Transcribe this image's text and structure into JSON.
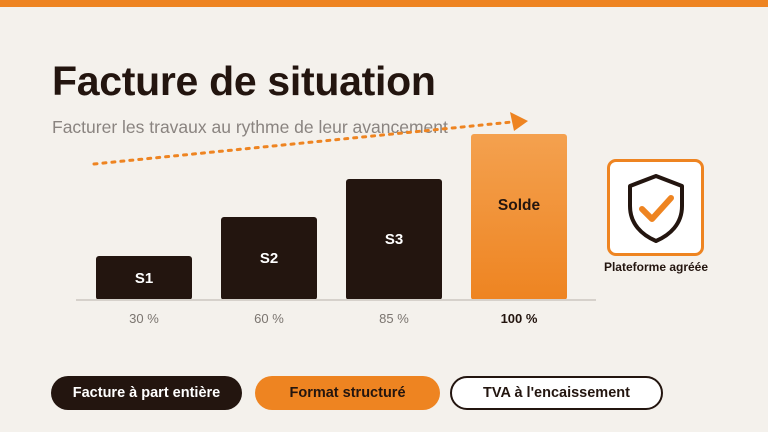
{
  "slide": {
    "title": "Facture de situation",
    "subtitle": "Facturer les travaux au rythme de leur avancement"
  },
  "bars": [
    {
      "label": "S1",
      "percent_label": "30 %",
      "value": 30
    },
    {
      "label": "S2",
      "percent_label": "60 %",
      "value": 60
    },
    {
      "label": "S3",
      "percent_label": "85 %",
      "value": 85
    },
    {
      "label": "Solde",
      "percent_label": "100 %",
      "value": 100
    }
  ],
  "platform": {
    "label": "Plateforme agréée",
    "icon": "shield-check-icon"
  },
  "pills": [
    {
      "label": "Facture à part entière",
      "style": "dark"
    },
    {
      "label": "Format structuré",
      "style": "orange"
    },
    {
      "label": "TVA à l'encaissement",
      "style": "outline"
    }
  ],
  "colors": {
    "accent": "#ee8421",
    "dark": "#23150f",
    "background": "#f4f1ec"
  }
}
